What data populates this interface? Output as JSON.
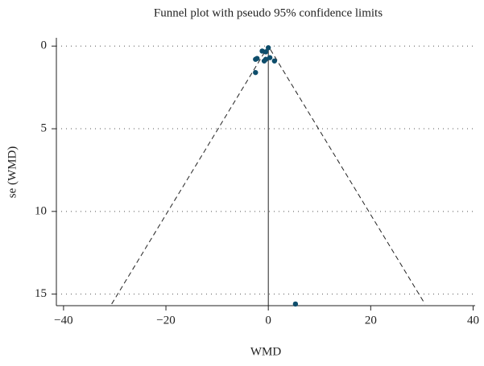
{
  "chart_data": {
    "type": "scatter",
    "title": "Funnel plot with pseudo 95% confidence limits",
    "x_label": "WMD",
    "y_label": "se (WMD)",
    "x": [
      0,
      -1.2,
      -0.5,
      -2.5,
      -2.2,
      -0.8,
      -0.5,
      0.3,
      1.2,
      -2.5,
      5.3
    ],
    "values": [
      0.1,
      0.3,
      0.35,
      0.8,
      0.75,
      0.9,
      0.8,
      0.7,
      0.9,
      1.6,
      15.6
    ],
    "color": "#0e4d6b",
    "funnel": {
      "x": [
        -30.6,
        0,
        30.6
      ],
      "y": [
        15.6,
        0,
        15.6
      ]
    },
    "reference_line": 0,
    "xlim": [
      -41.4,
      40.4
    ],
    "ylim": [
      -0.5,
      15.7
    ],
    "y_inverted": true,
    "xticks": [
      {
        "value": -40,
        "label": "−40"
      },
      {
        "value": -20,
        "label": "−20"
      },
      0,
      20,
      40
    ],
    "yticks": [
      0,
      5,
      10,
      15
    ],
    "grid": true
  }
}
